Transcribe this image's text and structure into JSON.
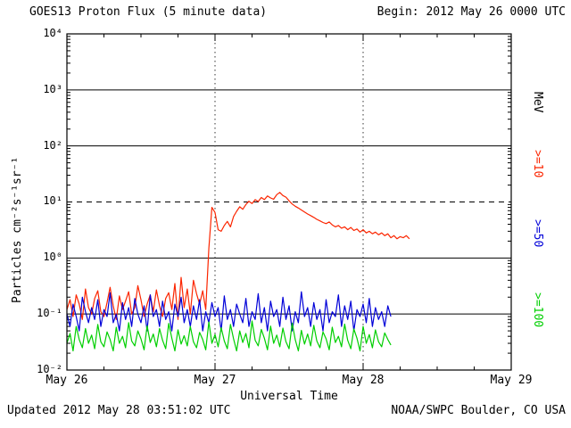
{
  "header": {
    "title": "GOES13 Proton Flux (5 minute data)",
    "begin_label": "Begin: 2012 May 26 0000 UTC"
  },
  "footer": {
    "updated": "Updated 2012 May 28 03:51:02 UTC",
    "source": "NOAA/SWPC Boulder, CO USA"
  },
  "chart_data": {
    "type": "line",
    "title": "GOES13 Proton Flux (5 minute data)",
    "xlabel": "Universal Time",
    "ylabel": "Particles  cm⁻²s⁻¹sr⁻¹",
    "right_axis_label": "MeV",
    "x_ticks": [
      "May 26",
      "May 27",
      "May 28",
      "May 29"
    ],
    "x_range_hours": [
      0,
      72
    ],
    "y_scale": "log",
    "ylog_range": [
      -2,
      4
    ],
    "y_tick_labels": [
      "10⁴",
      "10³",
      "10²",
      "10¹",
      "10⁰",
      "10⁻¹",
      "10⁻²"
    ],
    "dashed_threshold_flux": 10,
    "grid": "horizontal solid per decade, dashed at 10^1, dotted vertical at day boundaries",
    "series": [
      {
        "name": ">=10",
        "color": "#fb2500",
        "t0": 0,
        "dt": 0.5,
        "values": [
          0.12,
          0.18,
          0.09,
          0.22,
          0.15,
          0.08,
          0.28,
          0.13,
          0.1,
          0.19,
          0.26,
          0.11,
          0.09,
          0.16,
          0.3,
          0.14,
          0.08,
          0.21,
          0.12,
          0.17,
          0.25,
          0.1,
          0.13,
          0.32,
          0.18,
          0.09,
          0.15,
          0.22,
          0.11,
          0.27,
          0.14,
          0.09,
          0.19,
          0.24,
          0.12,
          0.35,
          0.08,
          0.45,
          0.13,
          0.28,
          0.1,
          0.4,
          0.23,
          0.15,
          0.26,
          0.12,
          1.5,
          8.0,
          6.5,
          3.2,
          3.0,
          3.8,
          4.5,
          3.6,
          5.5,
          6.8,
          8.2,
          7.4,
          9.0,
          10.3,
          9.4,
          11.0,
          10.2,
          12.0,
          11.0,
          12.8,
          11.8,
          11.2,
          13.5,
          14.8,
          13.0,
          12.2,
          10.5,
          9.2,
          8.4,
          7.8,
          7.2,
          6.6,
          6.1,
          5.7,
          5.3,
          4.9,
          4.6,
          4.3,
          4.1,
          4.4,
          3.9,
          3.6,
          3.8,
          3.4,
          3.6,
          3.2,
          3.5,
          3.1,
          3.3,
          2.9,
          3.2,
          2.8,
          3.0,
          2.7,
          2.9,
          2.6,
          2.8,
          2.5,
          2.7,
          2.3,
          2.5,
          2.2,
          2.4,
          2.3,
          2.5,
          2.2
        ]
      },
      {
        "name": ">=50",
        "color": "#0000d8",
        "t0": 0,
        "dt": 0.5,
        "values": [
          0.1,
          0.06,
          0.15,
          0.09,
          0.05,
          0.2,
          0.11,
          0.07,
          0.13,
          0.08,
          0.18,
          0.06,
          0.12,
          0.09,
          0.24,
          0.07,
          0.1,
          0.05,
          0.16,
          0.08,
          0.13,
          0.06,
          0.19,
          0.1,
          0.07,
          0.14,
          0.05,
          0.22,
          0.09,
          0.12,
          0.06,
          0.17,
          0.08,
          0.11,
          0.05,
          0.15,
          0.09,
          0.2,
          0.07,
          0.12,
          0.06,
          0.14,
          0.08,
          0.18,
          0.05,
          0.11,
          0.07,
          0.16,
          0.09,
          0.13,
          0.05,
          0.21,
          0.08,
          0.12,
          0.06,
          0.15,
          0.1,
          0.07,
          0.19,
          0.06,
          0.11,
          0.08,
          0.23,
          0.07,
          0.13,
          0.05,
          0.17,
          0.09,
          0.12,
          0.06,
          0.2,
          0.08,
          0.14,
          0.05,
          0.11,
          0.07,
          0.25,
          0.09,
          0.13,
          0.06,
          0.16,
          0.08,
          0.12,
          0.05,
          0.18,
          0.07,
          0.11,
          0.09,
          0.22,
          0.06,
          0.14,
          0.08,
          0.17,
          0.05,
          0.12,
          0.09,
          0.15,
          0.07,
          0.19,
          0.06,
          0.13,
          0.08,
          0.11,
          0.06,
          0.14,
          0.09
        ]
      },
      {
        "name": ">=100",
        "color": "#00cf00",
        "t0": 0,
        "dt": 0.5,
        "values": [
          0.03,
          0.045,
          0.022,
          0.06,
          0.035,
          0.025,
          0.055,
          0.03,
          0.042,
          0.024,
          0.065,
          0.032,
          0.026,
          0.048,
          0.035,
          0.022,
          0.058,
          0.03,
          0.04,
          0.025,
          0.07,
          0.033,
          0.027,
          0.05,
          0.036,
          0.023,
          0.062,
          0.031,
          0.044,
          0.026,
          0.055,
          0.034,
          0.024,
          0.068,
          0.037,
          0.022,
          0.052,
          0.029,
          0.041,
          0.027,
          0.06,
          0.032,
          0.025,
          0.047,
          0.035,
          0.023,
          0.072,
          0.03,
          0.043,
          0.026,
          0.057,
          0.033,
          0.024,
          0.065,
          0.036,
          0.022,
          0.05,
          0.031,
          0.045,
          0.025,
          0.075,
          0.034,
          0.027,
          0.053,
          0.037,
          0.023,
          0.061,
          0.03,
          0.042,
          0.026,
          0.056,
          0.032,
          0.024,
          0.069,
          0.035,
          0.022,
          0.051,
          0.029,
          0.044,
          0.027,
          0.063,
          0.033,
          0.025,
          0.048,
          0.036,
          0.023,
          0.058,
          0.031,
          0.04,
          0.026,
          0.066,
          0.034,
          0.024,
          0.054,
          0.037,
          0.022,
          0.06,
          0.03,
          0.043,
          0.025,
          0.052,
          0.032,
          0.026,
          0.046,
          0.035,
          0.028
        ]
      }
    ]
  }
}
